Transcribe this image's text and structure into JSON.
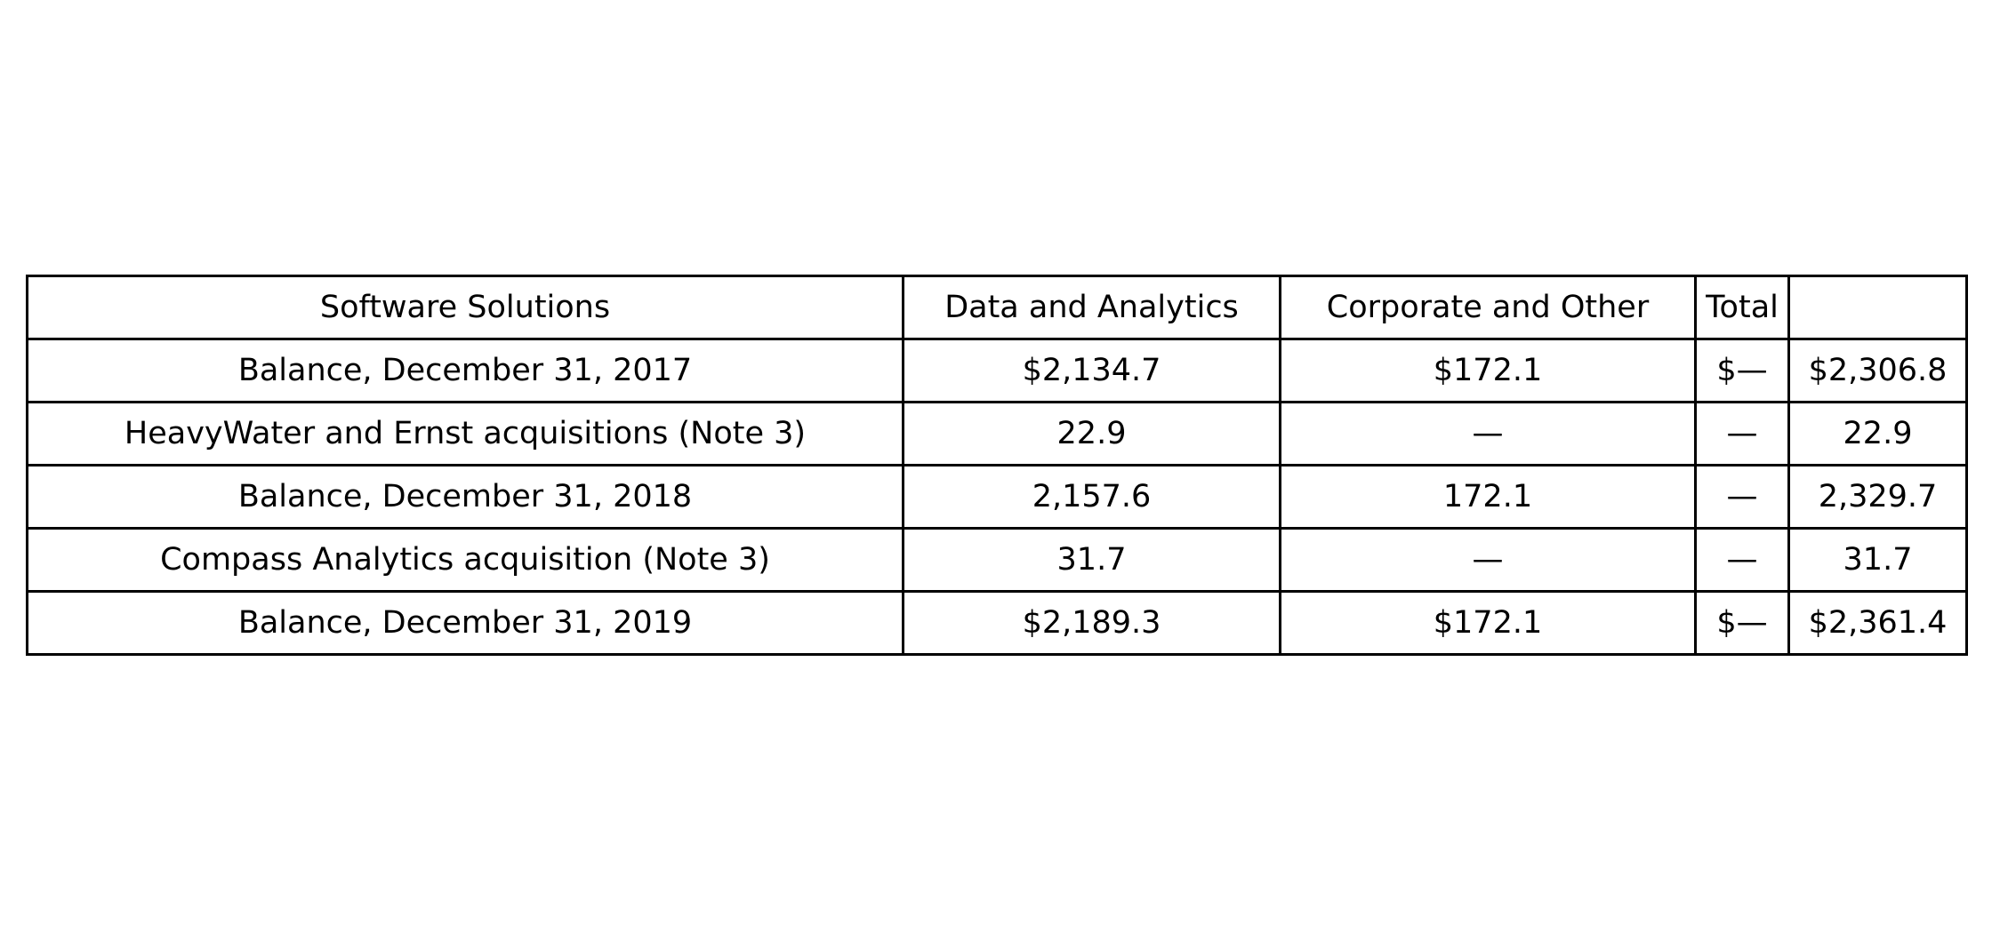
{
  "chart_data": {
    "type": "table",
    "header": [
      "Software Solutions",
      "Data and Analytics",
      "Corporate and Other",
      "Total",
      ""
    ],
    "rows": [
      [
        "Balance, December 31, 2017",
        "$2,134.7",
        "$172.1",
        "$—",
        "$2,306.8"
      ],
      [
        "HeavyWater and Ernst acquisitions (Note 3)",
        "22.9",
        "—",
        "—",
        "22.9"
      ],
      [
        "Balance, December 31, 2018",
        "2,157.6",
        "172.1",
        "—",
        "2,329.7"
      ],
      [
        "Compass Analytics acquisition (Note 3)",
        "31.7",
        "—",
        "—",
        "31.7"
      ],
      [
        "Balance, December 31, 2019",
        "$2,189.3",
        "$172.1",
        "$—",
        "$2,361.4"
      ]
    ]
  }
}
